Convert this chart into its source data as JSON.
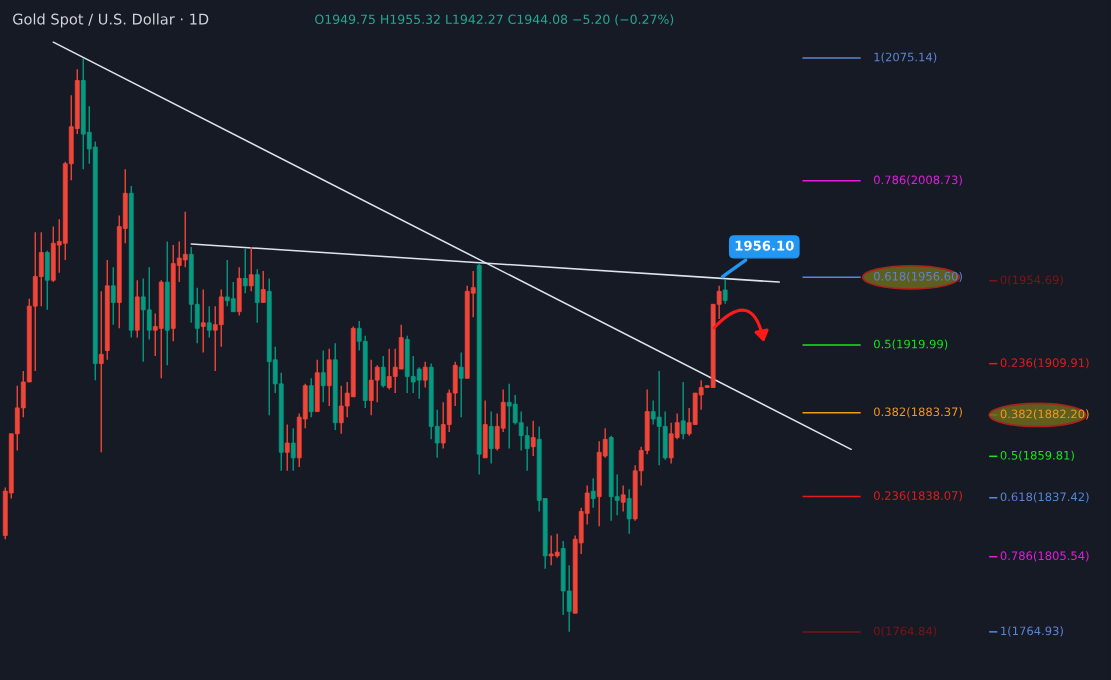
{
  "chart_data": {
    "type": "candlestick",
    "title": "Gold Spot / U.S. Dollar · 1D",
    "subtitle": "O1949.75 H1955.32 L1942.27 C1944.08 −5.20 (−0.27%)",
    "categories": [
      null,
      null,
      null,
      null,
      null,
      null,
      null,
      null,
      null,
      null,
      null,
      null,
      null,
      null,
      null,
      null,
      null,
      null,
      null,
      null,
      null,
      null,
      null,
      null,
      null,
      null,
      null,
      null,
      null,
      null,
      null,
      null,
      null,
      null,
      null,
      null,
      null,
      null,
      null,
      null,
      null,
      null,
      null,
      null,
      null,
      null,
      null,
      null,
      null,
      null,
      null,
      null,
      null,
      null,
      null,
      null,
      null,
      null,
      null,
      null,
      null,
      null,
      null,
      null,
      null,
      null,
      null,
      null,
      null,
      null,
      null,
      null,
      null,
      null,
      null,
      null,
      null,
      null,
      null,
      null,
      null,
      null,
      null,
      null,
      null,
      null,
      null,
      null,
      null,
      null,
      null,
      null,
      null,
      null,
      null,
      null,
      null,
      null,
      null,
      null,
      null,
      null,
      null,
      null,
      null,
      null,
      null,
      null,
      null,
      null,
      null,
      null,
      null,
      null,
      null,
      null,
      null,
      null,
      null,
      null,
      null,
      null,
      null,
      null,
      null,
      null,
      null,
      null,
      null,
      null,
      null,
      null,
      null,
      null,
      null,
      null,
      null,
      null,
      null,
      null,
      null,
      null
    ],
    "ohlc": [
      [
        1817,
        1843,
        1815,
        1841
      ],
      [
        1840,
        1872,
        1837,
        1872
      ],
      [
        1872,
        1898,
        1863,
        1886
      ],
      [
        1886,
        1906,
        1881,
        1900
      ],
      [
        1900,
        1945,
        1900,
        1941
      ],
      [
        1941,
        1981,
        1906,
        1957
      ],
      [
        1957,
        1981,
        1941,
        1970
      ],
      [
        1970,
        1971,
        1939,
        1955
      ],
      [
        1955,
        1984,
        1954,
        1975
      ],
      [
        1974,
        1988,
        1959,
        1976
      ],
      [
        1975,
        2019,
        1966,
        2018
      ],
      [
        2018,
        2055,
        2009,
        2038
      ],
      [
        2037,
        2069,
        2034,
        2063
      ],
      [
        2063,
        2075,
        2015,
        2034
      ],
      [
        2035,
        2049,
        2018,
        2026
      ],
      [
        2027,
        2030,
        1901,
        1910
      ],
      [
        1910,
        1949,
        1862,
        1915
      ],
      [
        1917,
        1966,
        1912,
        1952
      ],
      [
        1952,
        1962,
        1931,
        1943
      ],
      [
        1943,
        1990,
        1929,
        1984
      ],
      [
        1983,
        2015,
        1975,
        2002
      ],
      [
        2002,
        2006,
        1924,
        1928
      ],
      [
        1928,
        1955,
        1924,
        1946
      ],
      [
        1946,
        1956,
        1911,
        1939
      ],
      [
        1939,
        1962,
        1923,
        1928
      ],
      [
        1928,
        1937,
        1914,
        1930
      ],
      [
        1929,
        1955,
        1902,
        1954
      ],
      [
        1954,
        1976,
        1909,
        1928
      ],
      [
        1929,
        1974,
        1922,
        1964
      ],
      [
        1963,
        1976,
        1954,
        1967
      ],
      [
        1966,
        1992,
        1962,
        1969
      ],
      [
        1969,
        1973,
        1932,
        1942
      ],
      [
        1942,
        1951,
        1921,
        1929
      ],
      [
        1930,
        1950,
        1916,
        1932
      ],
      [
        1932,
        1941,
        1924,
        1928
      ],
      [
        1928,
        1941,
        1906,
        1931
      ],
      [
        1931,
        1950,
        1919,
        1946
      ],
      [
        1946,
        1966,
        1941,
        1944
      ],
      [
        1945,
        1954,
        1938,
        1938
      ],
      [
        1938,
        1962,
        1936,
        1956
      ],
      [
        1956,
        1972,
        1948,
        1952
      ],
      [
        1952,
        1973,
        1949,
        1958
      ],
      [
        1958,
        1961,
        1932,
        1943
      ],
      [
        1943,
        1960,
        1943,
        1950
      ],
      [
        1949,
        1956,
        1882,
        1911
      ],
      [
        1912,
        1919,
        1894,
        1899
      ],
      [
        1899,
        1905,
        1852,
        1862
      ],
      [
        1862,
        1877,
        1852,
        1867
      ],
      [
        1867,
        1875,
        1852,
        1859
      ],
      [
        1859,
        1883,
        1854,
        1881
      ],
      [
        1880,
        1899,
        1875,
        1898
      ],
      [
        1898,
        1902,
        1881,
        1884
      ],
      [
        1884,
        1912,
        1884,
        1905
      ],
      [
        1905,
        1917,
        1889,
        1898
      ],
      [
        1898,
        1918,
        1887,
        1912
      ],
      [
        1912,
        1921,
        1874,
        1878
      ],
      [
        1878,
        1898,
        1872,
        1887
      ],
      [
        1887,
        1900,
        1881,
        1894
      ],
      [
        1892,
        1930,
        1892,
        1929
      ],
      [
        1929,
        1933,
        1917,
        1922
      ],
      [
        1922,
        1925,
        1886,
        1890
      ],
      [
        1890,
        1912,
        1882,
        1901
      ],
      [
        1901,
        1909,
        1889,
        1908
      ],
      [
        1908,
        1914,
        1897,
        1898
      ],
      [
        1897,
        1918,
        1896,
        1903
      ],
      [
        1903,
        1918,
        1894,
        1908
      ],
      [
        1907,
        1931,
        1907,
        1924
      ],
      [
        1923,
        1925,
        1894,
        1903
      ],
      [
        1903,
        1914,
        1894,
        1900
      ],
      [
        1907,
        1908,
        1891,
        1901
      ],
      [
        1901,
        1911,
        1897,
        1908
      ],
      [
        1908,
        1910,
        1869,
        1876
      ],
      [
        1876,
        1885,
        1859,
        1867
      ],
      [
        1867,
        1889,
        1864,
        1877
      ],
      [
        1877,
        1896,
        1873,
        1894
      ],
      [
        1894,
        1911,
        1887,
        1909
      ],
      [
        1908,
        1916,
        1881,
        1902
      ],
      [
        1902,
        1952,
        1902,
        1949
      ],
      [
        1948,
        1960,
        1935,
        1951
      ],
      [
        1963,
        1964,
        1850,
        1861
      ],
      [
        1859,
        1890,
        1859,
        1877
      ],
      [
        1876,
        1884,
        1856,
        1864
      ],
      [
        1864,
        1883,
        1863,
        1876
      ],
      [
        1875,
        1896,
        1873,
        1889
      ],
      [
        1889,
        1899,
        1864,
        1887
      ],
      [
        1888,
        1893,
        1877,
        1878
      ],
      [
        1878,
        1884,
        1863,
        1871
      ],
      [
        1871,
        1876,
        1852,
        1864
      ],
      [
        1865,
        1879,
        1860,
        1870
      ],
      [
        1869,
        1876,
        1830,
        1836
      ],
      [
        1837,
        1837,
        1799,
        1806
      ],
      [
        1806,
        1817,
        1801,
        1807
      ],
      [
        1806,
        1818,
        1805,
        1808
      ],
      [
        1810,
        1814,
        1774,
        1787
      ],
      [
        1787,
        1801,
        1765,
        1776
      ],
      [
        1775,
        1817,
        1775,
        1815
      ],
      [
        1813,
        1832,
        1807,
        1830
      ],
      [
        1829,
        1844,
        1823,
        1840
      ],
      [
        1841,
        1848,
        1832,
        1837
      ],
      [
        1838,
        1868,
        1822,
        1862
      ],
      [
        1860,
        1875,
        1859,
        1869
      ],
      [
        1870,
        1871,
        1825,
        1838
      ],
      [
        1838,
        1850,
        1828,
        1836
      ],
      [
        1835,
        1844,
        1830,
        1839
      ],
      [
        1837,
        1842,
        1818,
        1826
      ],
      [
        1826,
        1855,
        1825,
        1852
      ],
      [
        1852,
        1865,
        1844,
        1863
      ],
      [
        1863,
        1896,
        1861,
        1884
      ],
      [
        1884,
        1890,
        1877,
        1880
      ],
      [
        1881,
        1906,
        1855,
        1876
      ],
      [
        1876,
        1884,
        1858,
        1859
      ],
      [
        1859,
        1878,
        1856,
        1872
      ],
      [
        1870,
        1883,
        1869,
        1878
      ],
      [
        1879,
        1900,
        1869,
        1872
      ],
      [
        1872,
        1886,
        1871,
        1878
      ],
      [
        1877,
        1894,
        1877,
        1894
      ],
      [
        1893,
        1901,
        1885,
        1897
      ],
      [
        1897,
        1898,
        1897,
        1898
      ],
      [
        1897,
        1942,
        1897,
        1942
      ],
      [
        1942,
        1952,
        1934,
        1949
      ],
      [
        1949.75,
        1955.32,
        1942.27,
        1944.08
      ],
      null,
      null,
      null,
      null,
      null,
      null,
      null,
      null,
      null,
      null,
      null,
      null,
      null,
      null,
      null,
      null,
      null,
      null,
      null,
      null,
      null
    ],
    "colors": [
      "#f0463a",
      "#f0463a",
      "#f0463a",
      "#f0463a",
      "#f0463a",
      "#f0463a",
      "#f0463a",
      "#089981",
      "#f0463a",
      "#f0463a",
      "#f0463a",
      "#f0463a",
      "#f0463a",
      "#089981",
      "#089981",
      "#089981",
      "#f0463a",
      "#f0463a",
      "#089981",
      "#f0463a",
      "#f0463a",
      "#089981",
      "#f0463a",
      "#089981",
      "#089981",
      "#f0463a",
      "#f0463a",
      "#089981",
      "#f0463a",
      "#f0463a",
      "#f0463a",
      "#089981",
      "#089981",
      "#f0463a",
      "#089981",
      "#f0463a",
      "#f0463a",
      "#089981",
      "#089981",
      "#f0463a",
      "#089981",
      "#f0463a",
      "#089981",
      "#f0463a",
      "#089981",
      "#089981",
      "#089981",
      "#f0463a",
      "#089981",
      "#f0463a",
      "#f0463a",
      "#089981",
      "#f0463a",
      "#089981",
      "#f0463a",
      "#089981",
      "#f0463a",
      "#f0463a",
      "#f0463a",
      "#089981",
      "#089981",
      "#f0463a",
      "#f0463a",
      "#089981",
      "#f0463a",
      "#f0463a",
      "#f0463a",
      "#089981",
      "#089981",
      "#089981",
      "#f0463a",
      "#089981",
      "#089981",
      "#f0463a",
      "#f0463a",
      "#f0463a",
      "#089981",
      "#f0463a",
      "#f0463a",
      "#089981",
      "#f0463a",
      "#089981",
      "#f0463a",
      "#f0463a",
      "#089981",
      "#089981",
      "#089981",
      "#089981",
      "#f0463a",
      "#089981",
      "#089981",
      "#f0463a",
      "#f0463a",
      "#089981",
      "#089981",
      "#f0463a",
      "#f0463a",
      "#f0463a",
      "#089981",
      "#f0463a",
      "#f0463a",
      "#089981",
      "#089981",
      "#f0463a",
      "#089981",
      "#f0463a",
      "#f0463a",
      "#f0463a",
      "#089981",
      "#089981",
      "#089981",
      "#f0463a",
      "#f0463a",
      "#089981",
      "#f0463a",
      "#f0463a",
      "#f0463a",
      "#f0463a",
      "#f0463a",
      "#f0463a",
      "#089981",
      null,
      null,
      null,
      null,
      null,
      null,
      null,
      null,
      null,
      null,
      null,
      null,
      null,
      null,
      null,
      null,
      null,
      null,
      null,
      null,
      null
    ],
    "series": [
      {
        "type": "line",
        "color": "#e0e3eb",
        "values": [
          null,
          null,
          null,
          null,
          null,
          null,
          null,
          null,
          2083.7,
          null,
          null,
          null,
          null,
          null,
          null,
          null,
          null,
          null,
          null,
          null,
          null,
          null,
          null,
          null,
          null,
          null,
          null,
          null,
          null,
          null,
          null,
          null,
          null,
          null,
          null,
          null,
          null,
          null,
          null,
          null,
          null,
          null,
          null,
          null,
          null,
          null,
          null,
          null,
          null,
          null,
          null,
          null,
          null,
          null,
          null,
          null,
          null,
          null,
          null,
          null,
          null,
          null,
          null,
          null,
          null,
          null,
          null,
          null,
          null,
          null,
          null,
          null,
          null,
          null,
          null,
          null,
          null,
          null,
          null,
          null,
          null,
          null,
          null,
          null,
          null,
          null,
          null,
          null,
          null,
          null,
          null,
          null,
          null,
          null,
          null,
          null,
          null,
          null,
          null,
          null,
          null,
          null,
          null,
          null,
          null,
          null,
          null,
          null,
          null,
          null,
          null,
          null,
          null,
          null,
          null,
          null,
          null,
          null,
          null,
          null,
          null,
          null,
          null,
          null,
          null,
          null,
          null,
          null,
          null,
          null,
          null,
          null,
          null,
          null,
          null,
          null,
          null,
          null,
          null,
          null,
          null,
          1863.6
        ]
      },
      {
        "type": "line",
        "color": "#e0e3eb",
        "values": [
          null,
          null,
          null,
          null,
          null,
          null,
          null,
          null,
          null,
          null,
          null,
          null,
          null,
          null,
          null,
          null,
          null,
          null,
          null,
          null,
          null,
          null,
          null,
          null,
          null,
          null,
          null,
          null,
          null,
          null,
          null,
          1974.6,
          null,
          null,
          null,
          null,
          null,
          null,
          null,
          null,
          null,
          null,
          null,
          null,
          null,
          null,
          null,
          null,
          null,
          null,
          null,
          null,
          null,
          null,
          null,
          null,
          null,
          null,
          null,
          null,
          null,
          null,
          null,
          null,
          null,
          null,
          null,
          null,
          null,
          null,
          null,
          null,
          null,
          null,
          null,
          null,
          null,
          null,
          null,
          null,
          null,
          null,
          null,
          null,
          null,
          null,
          null,
          null,
          null,
          null,
          null,
          null,
          null,
          null,
          null,
          null,
          null,
          null,
          null,
          null,
          null,
          null,
          null,
          null,
          null,
          null,
          null,
          null,
          null,
          null,
          null,
          null,
          null,
          null,
          null,
          null,
          null,
          null,
          null,
          null,
          null,
          null,
          null,
          null,
          null,
          null,
          null,
          null,
          null,
          1954.0,
          null,
          null,
          null,
          null,
          null,
          null,
          null,
          null,
          null,
          null,
          null,
          null
        ]
      }
    ],
    "ylim": [
      1738.9,
      2106.5
    ],
    "annotations": [
      {
        "text": "1956.10",
        "y": 1956.1
      }
    ],
    "ref_lines": [
      {
        "axis": "y",
        "value": 2075.14,
        "label": "1(2075.14)",
        "color": "#5b86d6"
      },
      {
        "axis": "y",
        "value": 2008.73,
        "label": "0.786(2008.73)",
        "color": "#e21ce0"
      },
      {
        "axis": "y",
        "value": 1956.6,
        "label": "0.618(1956.60)",
        "color": "#5b86d6"
      },
      {
        "axis": "y",
        "value": 1919.99,
        "label": "0.5(1919.99)",
        "color": "#19e619"
      },
      {
        "axis": "y",
        "value": 1883.37,
        "label": "0.382(1883.37)",
        "color": "#f5981d"
      },
      {
        "axis": "y",
        "value": 1838.07,
        "label": "0.236(1838.07)",
        "color": "#e01c1c"
      },
      {
        "axis": "y",
        "value": 1764.84,
        "label": "0(1764.84)",
        "color": "#7a1515"
      },
      {
        "axis": "y",
        "value": 1954.69,
        "label": "0(1954.69)",
        "color": "#7a1515"
      },
      {
        "axis": "y",
        "value": 1909.91,
        "label": "0.236(1909.91)",
        "color": "#e01c1c"
      },
      {
        "axis": "y",
        "value": 1882.2,
        "label": "0.382(1882.20)",
        "color": "#f5981d"
      },
      {
        "axis": "y",
        "value": 1859.81,
        "label": "0.5(1859.81)",
        "color": "#19e619"
      },
      {
        "axis": "y",
        "value": 1837.42,
        "label": "0.618(1837.42)",
        "color": "#5b86d6"
      },
      {
        "axis": "y",
        "value": 1805.54,
        "label": "0.786(1805.54)",
        "color": "#e21ce0"
      },
      {
        "axis": "y",
        "value": 1764.93,
        "label": "1(1764.93)",
        "color": "#5b86d6"
      }
    ]
  }
}
